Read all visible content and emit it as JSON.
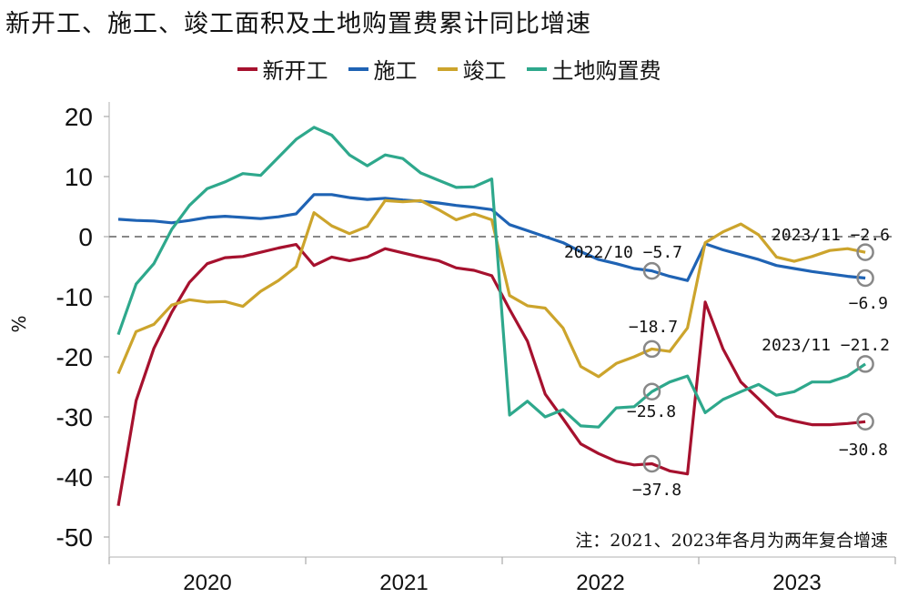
{
  "chart_data": {
    "type": "line",
    "title": "新开工、施工、竣工面积及土地购置费累计同比增速",
    "ylabel": "%",
    "xlabel": "",
    "ylim": [
      -50,
      20
    ],
    "yticks": [
      20,
      10,
      0,
      -10,
      -20,
      -30,
      -40,
      -50
    ],
    "year_labels": [
      "2020",
      "2021",
      "2022",
      "2023"
    ],
    "x": [
      "2020-02",
      "2020-03",
      "2020-04",
      "2020-05",
      "2020-06",
      "2020-07",
      "2020-08",
      "2020-09",
      "2020-10",
      "2020-11",
      "2020-12",
      "2021-02",
      "2021-03",
      "2021-04",
      "2021-05",
      "2021-06",
      "2021-07",
      "2021-08",
      "2021-09",
      "2021-10",
      "2021-11",
      "2021-12",
      "2022-02",
      "2022-03",
      "2022-04",
      "2022-05",
      "2022-06",
      "2022-07",
      "2022-08",
      "2022-09",
      "2022-10",
      "2022-11",
      "2022-12",
      "2023-02",
      "2023-03",
      "2023-04",
      "2023-05",
      "2023-06",
      "2023-07",
      "2023-08",
      "2023-09",
      "2023-10",
      "2023-11"
    ],
    "series": [
      {
        "name": "新开工",
        "color": "#A6112E",
        "values": [
          -44.8,
          -27.3,
          -18.6,
          -12.6,
          -7.6,
          -4.5,
          -3.5,
          -3.3,
          -2.6,
          -1.9,
          -1.3,
          -4.8,
          -3.4,
          -4.0,
          -3.4,
          -2.0,
          -2.7,
          -3.4,
          -4.0,
          -5.2,
          -5.6,
          -6.5,
          -12.1,
          -17.4,
          -26.2,
          -30.3,
          -34.5,
          -36.1,
          -37.4,
          -38.0,
          -37.8,
          -39.0,
          -39.5,
          -10.9,
          -18.7,
          -24.2,
          -27.0,
          -29.9,
          -30.7,
          -31.3,
          -31.3,
          -31.1,
          -30.8
        ]
      },
      {
        "name": "施工",
        "color": "#1F63B4",
        "values": [
          2.9,
          2.7,
          2.6,
          2.3,
          2.7,
          3.2,
          3.4,
          3.2,
          3.0,
          3.3,
          3.8,
          7.0,
          7.0,
          6.5,
          6.2,
          6.4,
          6.1,
          5.9,
          5.6,
          5.2,
          4.9,
          4.5,
          2.0,
          1.0,
          0.0,
          -1.0,
          -2.5,
          -3.8,
          -4.5,
          -5.3,
          -5.7,
          -6.6,
          -7.3,
          -1.2,
          -2.2,
          -3.0,
          -3.8,
          -4.8,
          -5.3,
          -5.8,
          -6.2,
          -6.6,
          -6.9
        ]
      },
      {
        "name": "竣工",
        "color": "#CCA42C",
        "values": [
          -22.8,
          -15.8,
          -14.6,
          -11.4,
          -10.5,
          -10.9,
          -10.8,
          -11.6,
          -9.1,
          -7.3,
          -5.0,
          4.0,
          1.8,
          0.5,
          1.7,
          6.0,
          5.8,
          6.0,
          4.5,
          2.8,
          3.8,
          2.8,
          -9.8,
          -11.5,
          -11.9,
          -15.2,
          -21.6,
          -23.3,
          -21.1,
          -20.0,
          -18.7,
          -19.1,
          -15.2,
          -1.0,
          0.8,
          2.1,
          0.3,
          -3.4,
          -4.1,
          -3.3,
          -2.3,
          -2.0,
          -2.6
        ]
      },
      {
        "name": "土地购置费",
        "color": "#2EA88C",
        "values": [
          -16.3,
          -7.9,
          -4.5,
          1.2,
          5.2,
          8.0,
          9.1,
          10.5,
          10.2,
          13.2,
          16.2,
          18.2,
          16.9,
          13.6,
          11.8,
          13.6,
          13.0,
          10.6,
          9.4,
          8.2,
          8.3,
          9.6,
          -29.7,
          -27.4,
          -30.0,
          -28.8,
          -31.5,
          -31.7,
          -28.5,
          -28.3,
          -25.8,
          -24.2,
          -23.2,
          -29.3,
          -27.1,
          -25.8,
          -24.6,
          -26.4,
          -25.8,
          -24.2,
          -24.2,
          -23.2,
          -21.2
        ]
      }
    ],
    "annotations": [
      {
        "text": "2022/10 −5.7",
        "series": 1,
        "x": "2022-10",
        "value": -5.7
      },
      {
        "text": "−18.7",
        "series": 2,
        "x": "2022-10",
        "value": -18.7
      },
      {
        "text": "−25.8",
        "series": 3,
        "x": "2022-10",
        "value": -25.8
      },
      {
        "text": "−37.8",
        "series": 0,
        "x": "2022-10",
        "value": -37.8
      },
      {
        "text": "2023/11 −2.6",
        "series": 2,
        "x": "2023-11",
        "value": -2.6
      },
      {
        "text": "−6.9",
        "series": 1,
        "x": "2023-11",
        "value": -6.9
      },
      {
        "text": "2023/11 −21.2",
        "series": 3,
        "x": "2023-11",
        "value": -21.2
      },
      {
        "text": "−30.8",
        "series": 0,
        "x": "2023-11",
        "value": -30.8
      }
    ],
    "note": "注：2021、2023年各月为两年复合增速",
    "reference_line": 0,
    "legend_position": "top-center"
  }
}
